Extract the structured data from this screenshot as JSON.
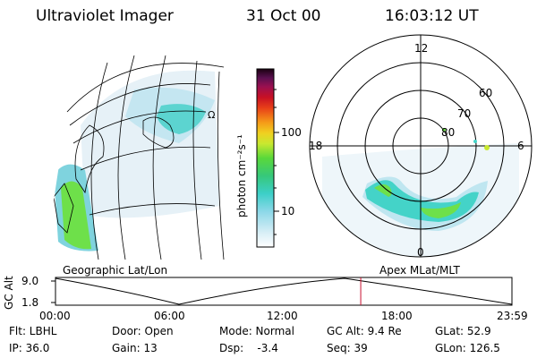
{
  "header": {
    "instrument": "Ultraviolet Imager",
    "date": "31 Oct 00",
    "time": "16:03:12 UT"
  },
  "colorbar": {
    "label": "photon cm⁻²s⁻¹",
    "ticks": [
      "100",
      "10"
    ]
  },
  "polar": {
    "mlt_labels": [
      "12",
      "18",
      "6",
      "0"
    ],
    "lat_labels": [
      "60",
      "70",
      "80"
    ]
  },
  "map_labels": {
    "geographic": "Geographic Lat/Lon",
    "apex": "Apex MLat/MLT"
  },
  "altitude_plot": {
    "ylabel": "GC Alt",
    "yticks": [
      "9.0",
      "1.8"
    ],
    "xticks": [
      "00:00",
      "06:00",
      "12:00",
      "18:00",
      "23:59"
    ],
    "current_time_hours": 16.05
  },
  "info": {
    "flt": "Flt: LBHL",
    "door": "Door: Open",
    "mode": "Mode: Normal",
    "gc_alt": "GC Alt: 9.4 Re",
    "glat": "GLat:  52.9",
    "ip": "IP: 36.0",
    "gain": "Gain: 13",
    "dsp": "Dsp:    -3.4",
    "seq": "Seq: 39",
    "glon": "GLon: 126.5"
  },
  "colors": {
    "marker": "#c8102e",
    "aurora_dim": "#dfeef6",
    "aurora_teal": "#4fd6cc",
    "aurora_green": "#6ee04a"
  }
}
